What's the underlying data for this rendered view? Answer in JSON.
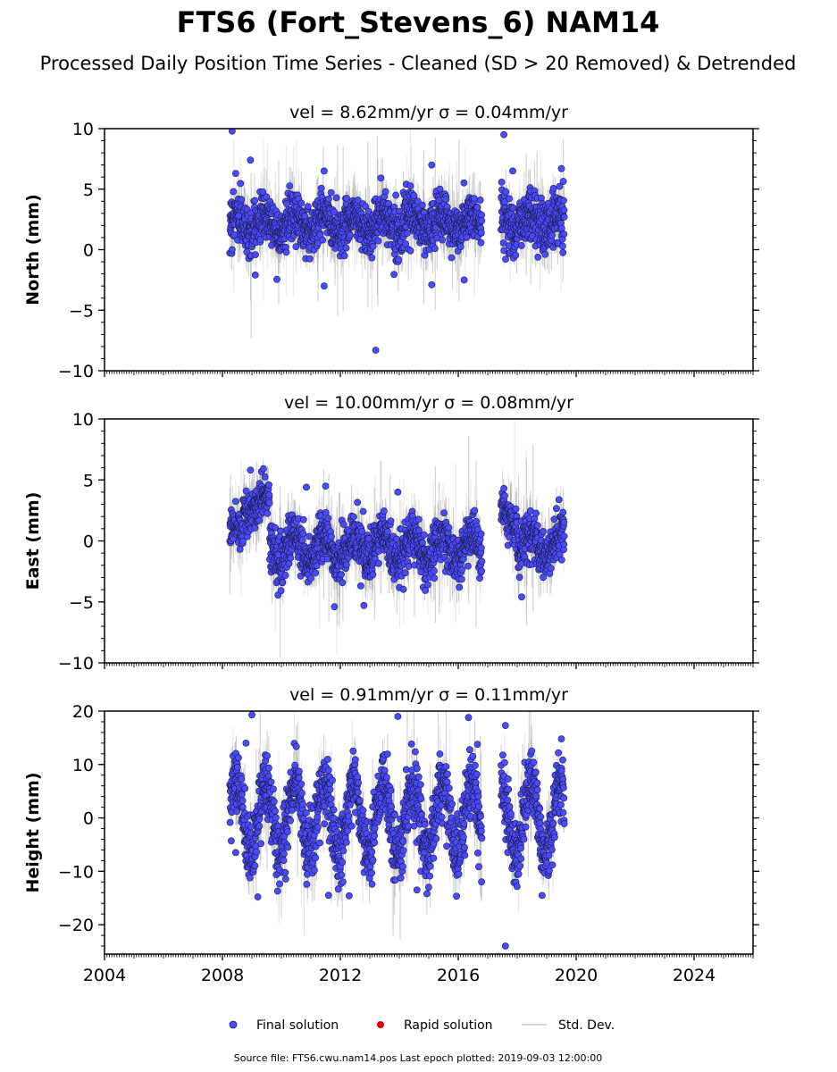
{
  "page": {
    "title": "FTS6 (Fort_Stevens_6) NAM14",
    "subtitle": "Processed Daily Position Time Series - Cleaned (SD > 20 Removed) & Detrended",
    "source": "Source file: FTS6.cwu.nam14.pos  Last epoch plotted: 2019-09-03 12:00:00"
  },
  "legend": {
    "items": [
      "Final solution",
      "Rapid solution",
      "Std. Dev."
    ],
    "placement": "bottom-center"
  },
  "colors": {
    "final": "#4a4aff",
    "rapid": "#e00000",
    "stddev": "#c8c8c8",
    "marker_edge": "#1a1a40"
  },
  "chart_data": [
    {
      "type": "scatter",
      "title": "vel = 8.62mm/yr   σ = 0.04mm/yr",
      "ylabel": "North (mm)",
      "xlim": [
        2004,
        2026
      ],
      "ylim": [
        -10,
        10
      ],
      "yticks": [
        -10,
        -5,
        0,
        5,
        10
      ],
      "ytick_labels": [
        "−10",
        "−5",
        "0",
        "5",
        "10"
      ],
      "segments": [
        {
          "x": [
            2008.25,
            2016.8
          ],
          "mean": 2.2,
          "spread": 1.3,
          "amp": 0.7
        },
        {
          "x": [
            2017.45,
            2019.6
          ],
          "mean": 2.4,
          "spread": 1.5,
          "amp": 0.6
        }
      ],
      "outliers": [
        [
          2008.33,
          9.8
        ],
        [
          2008.37,
          4.8
        ],
        [
          2008.33,
          0.0
        ],
        [
          2008.45,
          6.3
        ],
        [
          2008.55,
          2.8
        ],
        [
          2008.95,
          7.4
        ],
        [
          2011.45,
          -3.0
        ],
        [
          2011.45,
          6.5
        ],
        [
          2013.2,
          -8.3
        ],
        [
          2015.1,
          7.0
        ],
        [
          2015.1,
          -2.9
        ],
        [
          2017.55,
          9.5
        ],
        [
          2017.85,
          6.5
        ],
        [
          2019.5,
          6.7
        ],
        [
          2016.2,
          -2.5
        ]
      ]
    },
    {
      "type": "scatter",
      "title": "vel = 10.00mm/yr   σ = 0.08mm/yr",
      "ylabel": "East (mm)",
      "xlim": [
        2004,
        2026
      ],
      "ylim": [
        -10,
        10
      ],
      "yticks": [
        -10,
        -5,
        0,
        5,
        10
      ],
      "ytick_labels": [
        "−10",
        "−5",
        "0",
        "5",
        "10"
      ],
      "segments": [
        {
          "x": [
            2008.25,
            2008.7
          ],
          "mean": 0.6,
          "spread": 1.0,
          "amp": 0.5
        },
        {
          "x": [
            2008.7,
            2009.6
          ],
          "mean": 3.0,
          "spread": 1.1,
          "amp": 0.6
        },
        {
          "x": [
            2009.6,
            2016.8
          ],
          "mean": -0.6,
          "spread": 1.3,
          "amp": 1.1
        },
        {
          "x": [
            2017.45,
            2018.0
          ],
          "mean": 1.9,
          "spread": 1.0,
          "amp": 0.6
        },
        {
          "x": [
            2018.0,
            2019.6
          ],
          "mean": -0.4,
          "spread": 1.3,
          "amp": 0.9
        }
      ],
      "outliers": [
        [
          2008.95,
          5.8
        ],
        [
          2010.85,
          4.4
        ],
        [
          2011.5,
          4.5
        ],
        [
          2011.8,
          -5.4
        ],
        [
          2012.8,
          -5.3
        ],
        [
          2013.95,
          4.0
        ],
        [
          2017.55,
          4.3
        ],
        [
          2018.15,
          -4.6
        ]
      ]
    },
    {
      "type": "scatter",
      "title": "vel = 0.91mm/yr   σ = 0.11mm/yr",
      "ylabel": "Height (mm)",
      "xlim": [
        2004,
        2026
      ],
      "ylim": [
        -25.5,
        20
      ],
      "yticks": [
        -20,
        -10,
        0,
        10,
        20
      ],
      "ytick_labels": [
        "−20",
        "−10",
        "0",
        "10",
        "20"
      ],
      "segments": [
        {
          "x": [
            2008.25,
            2016.8
          ],
          "mean": 0.0,
          "spread": 4.0,
          "amp": 6.5
        },
        {
          "x": [
            2017.45,
            2019.6
          ],
          "mean": 0.0,
          "spread": 4.0,
          "amp": 6.5
        }
      ],
      "outliers": [
        [
          2008.3,
          -4.3
        ],
        [
          2008.45,
          -6.5
        ],
        [
          2008.8,
          14.0
        ],
        [
          2009.0,
          19.3
        ],
        [
          2009.2,
          -14.8
        ],
        [
          2011.6,
          -14.5
        ],
        [
          2012.3,
          -14.6
        ],
        [
          2013.95,
          19.0
        ],
        [
          2014.6,
          -13.5
        ],
        [
          2016.35,
          18.8
        ],
        [
          2016.65,
          13.8
        ],
        [
          2017.6,
          17.3
        ],
        [
          2017.6,
          -24.0
        ],
        [
          2019.5,
          14.8
        ]
      ]
    }
  ],
  "xaxis": {
    "ticks": [
      2004,
      2008,
      2012,
      2016,
      2020,
      2024
    ],
    "tick_labels": [
      "2004",
      "2008",
      "2012",
      "2016",
      "2020",
      "2024"
    ]
  }
}
